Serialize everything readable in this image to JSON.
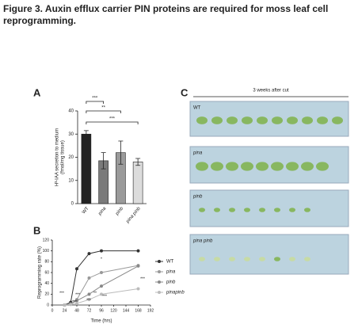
{
  "title": [
    "Figure 3. Auxin efflux carrier PIN proteins are required for moss leaf cell",
    "reprogramming."
  ],
  "chart_data": [
    {
      "type": "bar",
      "panel_label": "A",
      "y_label": [
        "H³-IAA secretion to medium",
        "(fmol/mg tissue)"
      ],
      "categories": [
        "WT",
        "pina",
        "pinb",
        "pina pinb"
      ],
      "values": [
        30,
        18.5,
        22,
        18
      ],
      "errors": [
        1.5,
        3.5,
        5,
        1.5
      ],
      "colors": [
        "#222222",
        "#7a7a7a",
        "#9a9a9a",
        "#dcdcdc"
      ],
      "ylim": [
        0,
        40
      ],
      "yticks": [
        0,
        10,
        20,
        30,
        40
      ],
      "significance": [
        "***",
        "**",
        "***"
      ]
    },
    {
      "type": "line",
      "panel_label": "B",
      "x_label": "Time (hrs)",
      "y_label": "Reprogramming rate (%)",
      "x": [
        24,
        36,
        48,
        72,
        96,
        168
      ],
      "series": [
        {
          "name": "WT",
          "color": "#333333",
          "values": [
            0,
            5,
            67,
            95,
            100,
            100
          ]
        },
        {
          "name": "pina",
          "color": "#999999",
          "values": [
            0,
            2,
            10,
            50,
            60,
            73
          ]
        },
        {
          "name": "pinb",
          "color": "#888888",
          "values": [
            0,
            2,
            8,
            20,
            35,
            72
          ]
        },
        {
          "name": "pinapinb",
          "color": "#bbbbbb",
          "values": [
            0,
            1,
            3,
            10,
            20,
            30
          ]
        }
      ],
      "xlim": [
        0,
        192
      ],
      "xticks": [
        0,
        24,
        48,
        72,
        96,
        120,
        144,
        168,
        192
      ],
      "ylim": [
        0,
        120
      ],
      "yticks": [
        0,
        20,
        40,
        60,
        80,
        100,
        120
      ],
      "annotations": [
        "*",
        "***",
        "***",
        "***",
        "**",
        "***",
        "***",
        "***"
      ]
    }
  ],
  "panel_c": {
    "panel_label": "C",
    "header": "3 weeks after cut",
    "images": [
      "WT",
      "pina",
      "pinb",
      "pina pinb"
    ]
  }
}
